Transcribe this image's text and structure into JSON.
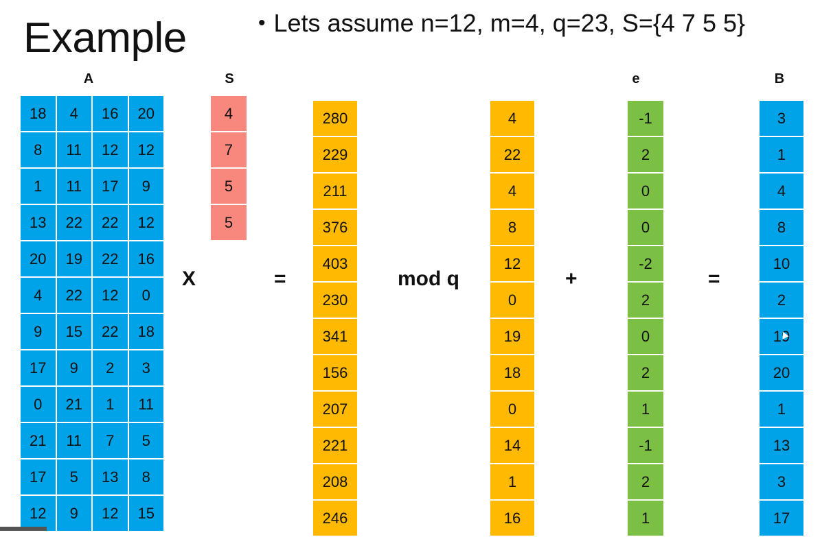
{
  "slide": {
    "title": "Example",
    "bullet": "Lets assume n=12, m=4, q=23, S={4 7 5 5}"
  },
  "headers": {
    "A": "A",
    "S": "S",
    "e": "e",
    "B": "B"
  },
  "operators": {
    "times": "X",
    "equals1": "=",
    "mod": "mod q",
    "plus": "+",
    "equals2": "="
  },
  "matrix_A": [
    [
      "18",
      "4",
      "16",
      "20"
    ],
    [
      "8",
      "11",
      "12",
      "12"
    ],
    [
      "1",
      "11",
      "17",
      "9"
    ],
    [
      "13",
      "22",
      "22",
      "12"
    ],
    [
      "20",
      "19",
      "22",
      "16"
    ],
    [
      "4",
      "22",
      "12",
      "0"
    ],
    [
      "9",
      "15",
      "22",
      "18"
    ],
    [
      "17",
      "9",
      "2",
      "3"
    ],
    [
      "0",
      "21",
      "1",
      "11"
    ],
    [
      "21",
      "11",
      "7",
      "5"
    ],
    [
      "17",
      "5",
      "13",
      "8"
    ],
    [
      "12",
      "9",
      "12",
      "15"
    ]
  ],
  "vector_S": [
    "4",
    "7",
    "5",
    "5"
  ],
  "product": [
    "280",
    "229",
    "211",
    "376",
    "403",
    "230",
    "341",
    "156",
    "207",
    "221",
    "208",
    "246"
  ],
  "mod_result": [
    "4",
    "22",
    "4",
    "8",
    "12",
    "0",
    "19",
    "18",
    "0",
    "14",
    "1",
    "16"
  ],
  "vector_e": [
    "-1",
    "2",
    "0",
    "0",
    "-2",
    "2",
    "0",
    "2",
    "1",
    "-1",
    "2",
    "1"
  ],
  "vector_B": [
    "3",
    "1",
    "4",
    "8",
    "10",
    "2",
    "19",
    "20",
    "1",
    "13",
    "3",
    "17"
  ],
  "colors": {
    "matrix_blue": "#00a2e8",
    "s_salmon": "#f8877d",
    "orange": "#ffb900",
    "green": "#7cbf45"
  }
}
